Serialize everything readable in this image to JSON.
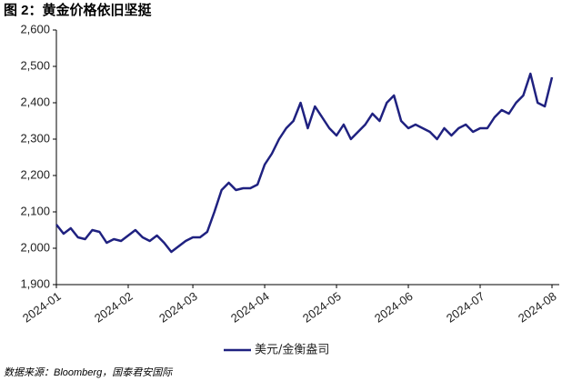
{
  "chart_data": {
    "type": "line",
    "title": "图 2：黄金价格依旧坚挺",
    "source": "数据来源：Bloomberg，国泰君安国际",
    "categories": [
      "2024-01",
      null,
      null,
      null,
      null,
      null,
      null,
      null,
      null,
      null,
      "2024-02",
      null,
      null,
      null,
      null,
      null,
      null,
      null,
      null,
      "2024-03",
      null,
      null,
      null,
      null,
      null,
      null,
      null,
      null,
      null,
      "2024-04",
      null,
      null,
      null,
      null,
      null,
      null,
      null,
      null,
      null,
      "2024-05",
      null,
      null,
      null,
      null,
      null,
      null,
      null,
      null,
      null,
      "2024-06",
      null,
      null,
      null,
      null,
      null,
      null,
      null,
      null,
      null,
      "2024-07",
      null,
      null,
      null,
      null,
      null,
      null,
      null,
      null,
      null,
      "2024-08"
    ],
    "series": [
      {
        "name": "美元/金衡盎司",
        "color": "#1f2180",
        "values": [
          2065,
          2040,
          2055,
          2030,
          2025,
          2050,
          2045,
          2015,
          2025,
          2020,
          2035,
          2050,
          2030,
          2020,
          2035,
          2015,
          1990,
          2005,
          2020,
          2030,
          2030,
          2045,
          2100,
          2160,
          2180,
          2160,
          2165,
          2165,
          2175,
          2230,
          2260,
          2300,
          2330,
          2350,
          2400,
          2330,
          2390,
          2360,
          2330,
          2310,
          2340,
          2300,
          2320,
          2340,
          2370,
          2350,
          2400,
          2420,
          2350,
          2330,
          2340,
          2330,
          2320,
          2300,
          2330,
          2310,
          2330,
          2340,
          2320,
          2330,
          2330,
          2360,
          2380,
          2370,
          2400,
          2420,
          2480,
          2400,
          2390,
          2470
        ]
      }
    ],
    "ylim": [
      1900,
      2600
    ],
    "yticks": [
      {
        "value": 1900,
        "label": "1,900"
      },
      {
        "value": 2000,
        "label": "2,000"
      },
      {
        "value": 2100,
        "label": "2,100"
      },
      {
        "value": 2200,
        "label": "2,200"
      },
      {
        "value": 2300,
        "label": "2,300"
      },
      {
        "value": 2400,
        "label": "2,400"
      },
      {
        "value": 2500,
        "label": "2,500"
      },
      {
        "value": 2600,
        "label": "2,600"
      }
    ],
    "grid": false,
    "legend": "bottom"
  }
}
